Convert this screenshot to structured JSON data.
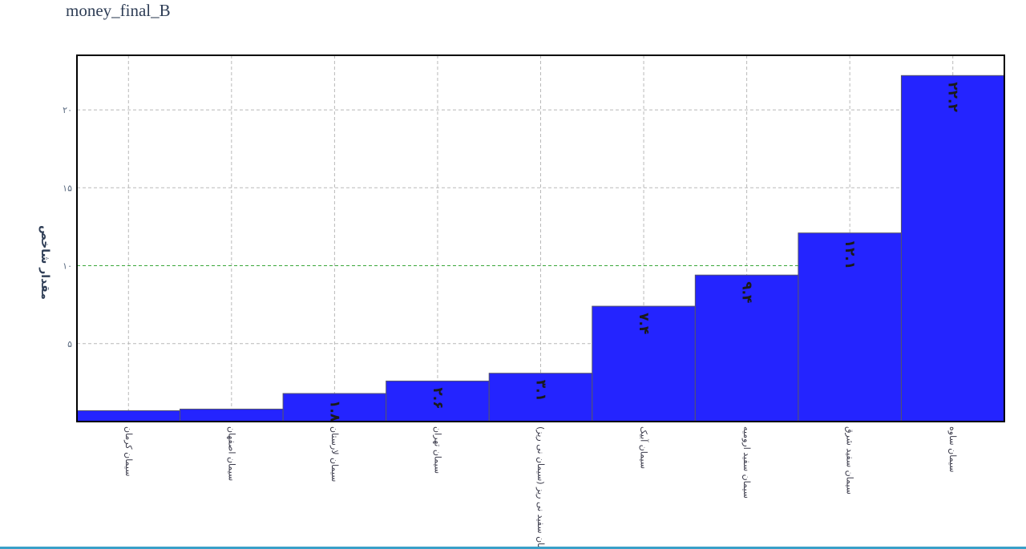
{
  "page": {
    "title": "money_final_B"
  },
  "colors": {
    "bar": "#2424ff",
    "bar_stroke": "#55556a",
    "grid": "#b9b9b9",
    "grid_highlight": "#3aa83a",
    "frame": "#000000",
    "tick_text": "#5a6a80",
    "axis_title": "#2f3e56",
    "bottom_line": "#3aa0c8"
  },
  "chart_data": {
    "type": "bar",
    "title": "",
    "xlabel": "",
    "ylabel": "مقدار شاخص",
    "ylim": [
      0,
      23.5
    ],
    "yticks": [
      5,
      10,
      15,
      20
    ],
    "ytick_labels": [
      "۵",
      "۱۰",
      "۱۵",
      "۲۰"
    ],
    "grid": true,
    "categories": [
      "سیمان کرمان",
      "سیمان اصفهان",
      "سیمان لارستان",
      "سیمان تهران",
      "سیمان سفید نی ریز (سیمان نی ریز)",
      "سیمان آبیک",
      "سیمان سفید ارومیه",
      "سیمان سفید شرق",
      "سیمان ساوه"
    ],
    "values": [
      0.7,
      0.8,
      1.8,
      2.6,
      3.1,
      7.4,
      9.4,
      12.1,
      22.2
    ],
    "data_labels": [
      "",
      "",
      "۱.۸",
      "۲.۶",
      "۳.۱",
      "۷.۴",
      "۹.۴",
      "۱۲.۱",
      "۲۲.۲"
    ]
  }
}
